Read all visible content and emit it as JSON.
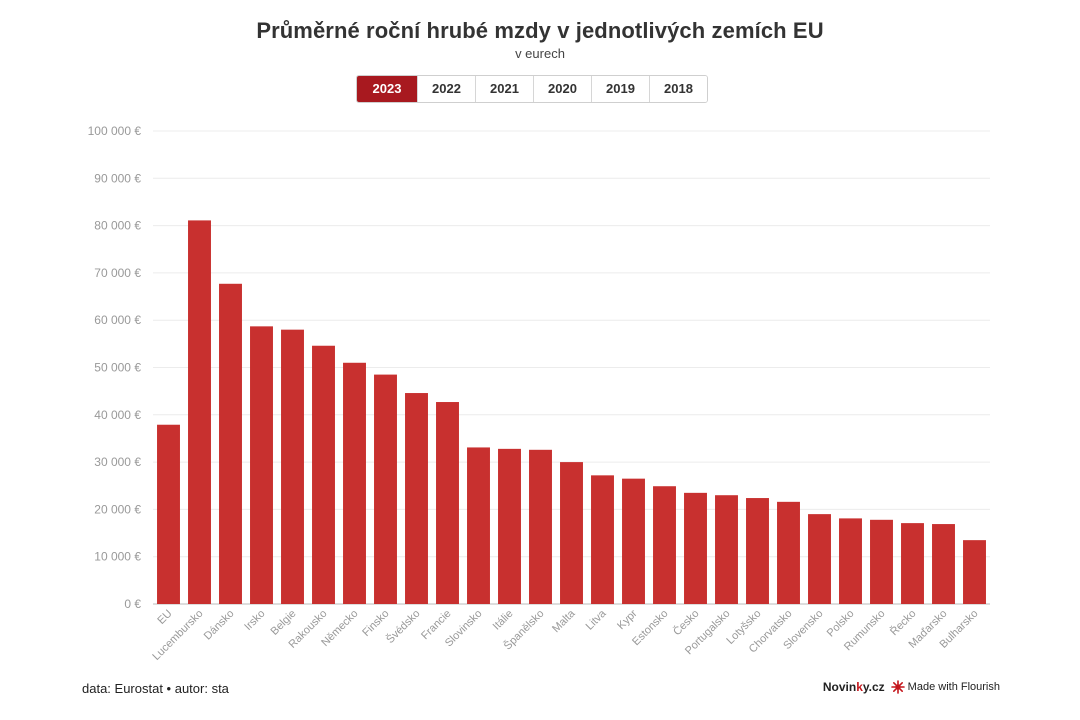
{
  "header": {
    "title": "Průměrné roční hrubé mzdy v jednotlivých zemích EU",
    "subtitle": "v eurech"
  },
  "tabs": [
    {
      "label": "2023",
      "active": true
    },
    {
      "label": "2022",
      "active": false
    },
    {
      "label": "2021",
      "active": false
    },
    {
      "label": "2020",
      "active": false
    },
    {
      "label": "2019",
      "active": false
    },
    {
      "label": "2018",
      "active": false
    }
  ],
  "footer": {
    "source": "data: Eurostat • autor: sta",
    "brand_prefix": "Novin",
    "brand_highlight": "k",
    "brand_suffix": "y.cz",
    "flourish": "Made with Flourish"
  },
  "colors": {
    "bar": "#c8302f",
    "active_tab": "#a8191f",
    "grid": "#ececec",
    "tick_text": "#999999"
  },
  "chart_data": {
    "type": "bar",
    "categories": [
      "EU",
      "Lucembursko",
      "Dánsko",
      "Irsko",
      "Belgie",
      "Rakousko",
      "Německo",
      "Finsko",
      "Švédsko",
      "Francie",
      "Slovinsko",
      "Itálie",
      "Španělsko",
      "Malta",
      "Litva",
      "Kypr",
      "Estonsko",
      "Česko",
      "Portugalsko",
      "Lotyšsko",
      "Chorvatsko",
      "Slovensko",
      "Polsko",
      "Rumunsko",
      "Řecko",
      "Maďarsko",
      "Bulharsko"
    ],
    "values": [
      37900,
      81100,
      67700,
      58700,
      58000,
      54600,
      51000,
      48500,
      44600,
      42700,
      33100,
      32800,
      32600,
      30000,
      27200,
      26500,
      24900,
      23500,
      23000,
      22400,
      21600,
      19000,
      18100,
      17800,
      17100,
      16900,
      13500
    ],
    "ylim": [
      0,
      100000
    ],
    "yticks": [
      0,
      10000,
      20000,
      30000,
      40000,
      50000,
      60000,
      70000,
      80000,
      90000,
      100000
    ],
    "ytick_labels": [
      "0 €",
      "10 000 €",
      "20 000 €",
      "30 000 €",
      "40 000 €",
      "50 000 €",
      "60 000 €",
      "70 000 €",
      "80 000 €",
      "90 000 €",
      "100 000 €"
    ],
    "grid": true,
    "legend": "none"
  }
}
